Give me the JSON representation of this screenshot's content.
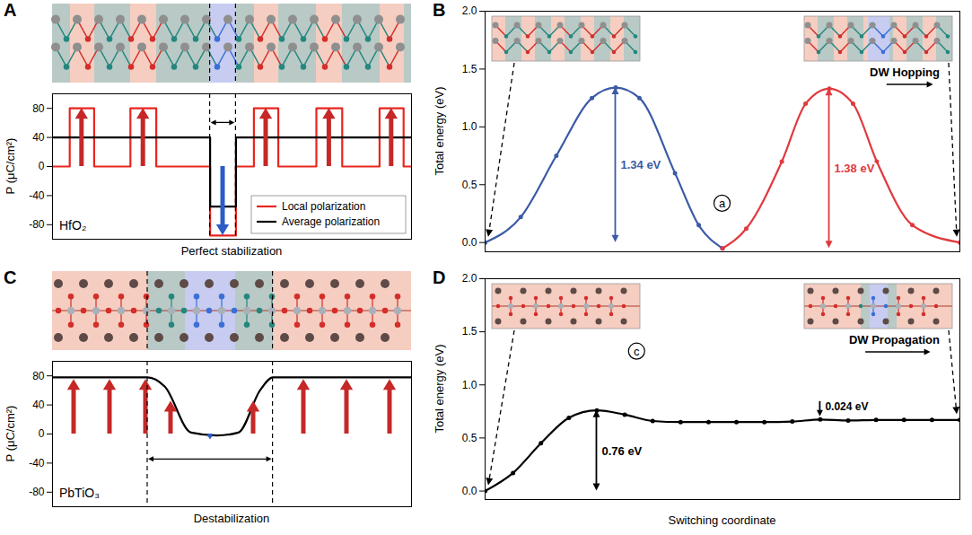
{
  "chart_data": [
    {
      "panel_label": "A",
      "type": "line",
      "line_style": "step",
      "material": "HfO₂",
      "x_label": "Perfect stabilization",
      "y_label": "P (μC/cm²)",
      "xlim": [
        0,
        100
      ],
      "ylim": [
        -100,
        100
      ],
      "yticks": [
        -80,
        -40,
        0,
        40,
        80
      ],
      "tick_labels": "y",
      "legend": "lower right",
      "domain_wall": [
        43.9,
        51.1
      ],
      "x": [
        0,
        4.8,
        11.6,
        21.7,
        28.9,
        43.9,
        51.1,
        56.1,
        62.9,
        73.5,
        80.7,
        91.1,
        97.8,
        100
      ],
      "series": [
        {
          "name": "Local polarization",
          "color": "#e8251f",
          "values": [
            0,
            80,
            0,
            80,
            0,
            -95,
            0,
            80,
            0,
            80,
            0,
            80,
            0,
            0
          ]
        },
        {
          "name": "Average polarization",
          "color": "#000000",
          "values": [
            40,
            40,
            40,
            40,
            40,
            -55,
            40,
            40,
            40,
            40,
            40,
            40,
            40,
            40
          ]
        }
      ]
    },
    {
      "panel_label": "B",
      "type": "line",
      "line_style": "smooth",
      "marker": "dot",
      "y_label": "Total energy (eV)",
      "annotation": "DW Hopping",
      "state_label": "a",
      "xlim": [
        0,
        2
      ],
      "ylim": [
        -0.08,
        2.0
      ],
      "yticks": [
        {
          "value": 0,
          "label": "0.0"
        },
        0.5,
        {
          "value": 1,
          "label": "1.0"
        },
        1.5,
        {
          "value": 2,
          "label": "2.0"
        }
      ],
      "tick_labels": "y",
      "series": [
        {
          "color": "#3c5aa6",
          "x": [
            0,
            0.15,
            0.3,
            0.45,
            0.55,
            0.65,
            0.8,
            0.9,
            1.0
          ],
          "values": [
            0,
            0.22,
            0.75,
            1.25,
            1.34,
            1.25,
            0.6,
            0.15,
            -0.05
          ],
          "barriers": [
            {
              "from": 0,
              "to": 1.34,
              "label": "1.34 eV"
            }
          ]
        },
        {
          "color": "#e0393e",
          "x": [
            1.0,
            1.1,
            1.25,
            1.35,
            1.45,
            1.55,
            1.65,
            1.8,
            2.0
          ],
          "values": [
            -0.05,
            0.12,
            0.7,
            1.2,
            1.33,
            1.2,
            0.7,
            0.15,
            0
          ],
          "barriers": [
            {
              "from": -0.05,
              "to": 1.33,
              "label": "1.38 eV"
            }
          ]
        }
      ]
    },
    {
      "panel_label": "C",
      "type": "line",
      "line_style": "smooth",
      "material": "PbTiO₃",
      "x_label": "Destabilization",
      "y_label": "P (μC/cm²)",
      "xlim": [
        0,
        100
      ],
      "ylim": [
        -100,
        100
      ],
      "yticks": [
        -80,
        -40,
        0,
        40,
        80
      ],
      "tick_labels": "y",
      "domain_wall": [
        26.5,
        61.4
      ],
      "color": "#000000",
      "x": [
        0,
        26.5,
        31.3,
        38.6,
        45.8,
        51.8,
        57.8,
        61.4,
        100
      ],
      "values": [
        78,
        78,
        65,
        2,
        -2,
        2,
        60,
        78,
        78
      ],
      "arrows": {
        "x": [
          6,
          16,
          26,
          33,
          44,
          56,
          70,
          82,
          94
        ],
        "values": [
          75,
          75,
          75,
          45,
          -8,
          45,
          75,
          75,
          75
        ]
      }
    },
    {
      "panel_label": "D",
      "type": "line",
      "line_style": "smooth",
      "marker": "dot",
      "x_label": "Switching coordinate",
      "y_label": "Total energy (eV)",
      "annotation": "DW Propagation",
      "state_label": "c",
      "xlim": [
        0,
        17
      ],
      "ylim": [
        -0.08,
        2.0
      ],
      "yticks": [
        {
          "value": 0,
          "label": "0.0"
        },
        0.5,
        {
          "value": 1,
          "label": "1.0"
        },
        1.5,
        {
          "value": 2,
          "label": "2.0"
        }
      ],
      "tick_labels": "y",
      "series": [
        {
          "color": "#000000",
          "x": [
            0,
            1,
            2,
            3,
            4,
            5,
            6,
            7,
            8,
            9,
            10,
            11,
            12,
            13,
            14,
            15,
            16,
            17
          ],
          "values": [
            0,
            0.17,
            0.45,
            0.69,
            0.76,
            0.72,
            0.66,
            0.65,
            0.65,
            0.65,
            0.65,
            0.655,
            0.674,
            0.665,
            0.67,
            0.67,
            0.67,
            0.67
          ],
          "barriers": [
            {
              "from": 0,
              "to": 0.76,
              "label": "0.76 eV"
            },
            {
              "from": 0.65,
              "to": 0.674,
              "label": "0.024 eV"
            }
          ]
        }
      ]
    }
  ]
}
